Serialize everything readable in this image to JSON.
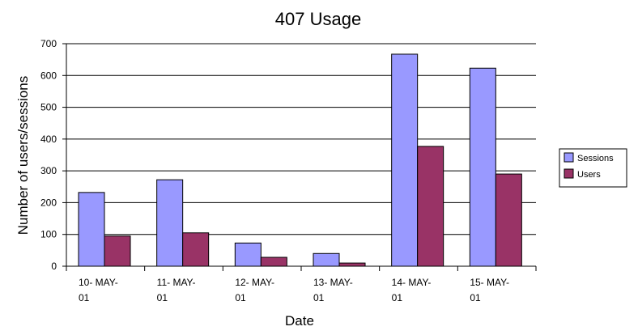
{
  "chart_data": {
    "type": "bar",
    "title": "407 Usage",
    "xlabel": "Date",
    "ylabel": "Number of users/sessions",
    "categories": [
      [
        "10- MAY-",
        "01"
      ],
      [
        "11- MAY-",
        "01"
      ],
      [
        "12- MAY-",
        "01"
      ],
      [
        "13- MAY-",
        "01"
      ],
      [
        "14- MAY-",
        "01"
      ],
      [
        "15- MAY-",
        "01"
      ]
    ],
    "series": [
      {
        "name": "Sessions",
        "values": [
          232,
          272,
          73,
          40,
          667,
          623
        ],
        "color": "#9999ff"
      },
      {
        "name": "Users",
        "values": [
          95,
          105,
          28,
          10,
          377,
          290
        ],
        "color": "#993366"
      }
    ],
    "ylim": [
      0,
      700
    ],
    "yticks": [
      0,
      100,
      200,
      300,
      400,
      500,
      600,
      700
    ],
    "grid": true,
    "legend": "right"
  }
}
